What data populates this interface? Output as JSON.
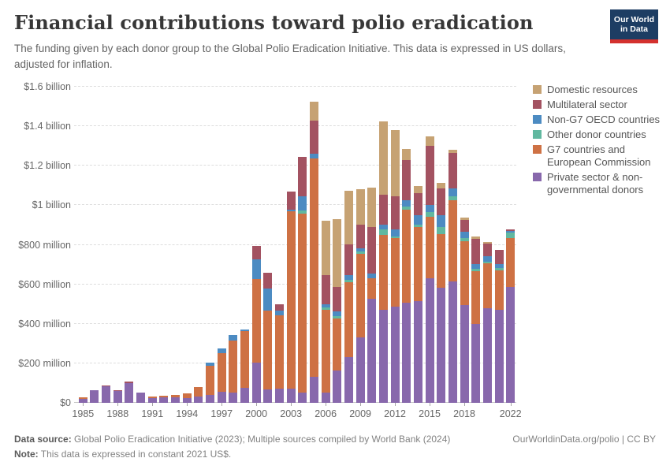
{
  "header": {
    "title": "Financial contributions toward polio eradication",
    "subtitle": "The funding given by each donor group to the Global Polio Eradication Initiative. This data is expressed in US dollars, adjusted for inflation.",
    "logo": {
      "line1": "Our World",
      "line2": "in Data"
    }
  },
  "chart_data": {
    "type": "bar",
    "stacked": true,
    "title": "Financial contributions toward polio eradication",
    "xlabel": "",
    "ylabel": "",
    "values_unit": "million US$ (constant 2021 US$)",
    "ylim": [
      0,
      1600
    ],
    "grid": "horizontal-dashed",
    "legend_position": "right",
    "categories": [
      1985,
      1986,
      1987,
      1988,
      1989,
      1990,
      1991,
      1992,
      1993,
      1994,
      1995,
      1996,
      1997,
      1998,
      1999,
      2000,
      2001,
      2002,
      2003,
      2004,
      2005,
      2006,
      2007,
      2008,
      2009,
      2010,
      2011,
      2012,
      2013,
      2014,
      2015,
      2016,
      2017,
      2018,
      2019,
      2020,
      2021,
      2022
    ],
    "series": [
      {
        "name": "Private sector & non-governmental donors",
        "color": "#8868AC",
        "values": [
          22,
          62,
          85,
          58,
          101,
          51,
          24,
          27,
          27,
          23,
          31,
          40,
          57,
          51,
          77,
          204,
          68,
          73,
          73,
          52,
          132,
          53,
          164,
          233,
          332,
          525,
          470,
          488,
          505,
          516,
          632,
          584,
          613,
          494,
          400,
          480,
          469,
          585
        ]
      },
      {
        "name": "G7 countries and European Commission",
        "color": "#CE7144",
        "values": [
          7,
          0,
          0,
          0,
          0,
          0,
          7,
          7,
          12,
          25,
          49,
          149,
          196,
          263,
          287,
          424,
          400,
          371,
          897,
          906,
          1105,
          418,
          263,
          377,
          422,
          105,
          380,
          346,
          474,
          372,
          310,
          271,
          411,
          324,
          266,
          225,
          200,
          250
        ]
      },
      {
        "name": "Other donor countries",
        "color": "#61B8A0",
        "values": [
          0,
          0,
          0,
          0,
          0,
          0,
          0,
          0,
          0,
          0,
          0,
          0,
          0,
          0,
          0,
          0,
          0,
          0,
          0,
          17,
          0,
          12,
          12,
          12,
          12,
          0,
          28,
          8,
          15,
          12,
          24,
          36,
          20,
          17,
          12,
          11,
          13,
          28
        ]
      },
      {
        "name": "Non-G7 OECD countries",
        "color": "#4C8BC2",
        "values": [
          0,
          0,
          0,
          0,
          0,
          0,
          0,
          0,
          0,
          0,
          0,
          15,
          22,
          28,
          9,
          99,
          112,
          24,
          9,
          70,
          24,
          16,
          24,
          24,
          16,
          23,
          24,
          36,
          30,
          48,
          35,
          60,
          40,
          31,
          24,
          27,
          20,
          8
        ]
      },
      {
        "name": "Multilateral sector",
        "color": "#A35261",
        "values": [
          0,
          3,
          3,
          5,
          5,
          2,
          0,
          0,
          0,
          0,
          0,
          0,
          0,
          0,
          0,
          66,
          80,
          32,
          90,
          200,
          166,
          147,
          124,
          156,
          120,
          238,
          151,
          167,
          204,
          113,
          301,
          133,
          183,
          59,
          127,
          63,
          73,
          8
        ]
      },
      {
        "name": "Domestic resources",
        "color": "#C6A273",
        "values": [
          0,
          0,
          0,
          0,
          0,
          0,
          0,
          0,
          0,
          0,
          0,
          0,
          0,
          0,
          0,
          0,
          0,
          0,
          0,
          0,
          97,
          276,
          344,
          270,
          179,
          199,
          371,
          335,
          56,
          36,
          48,
          31,
          16,
          13,
          13,
          10,
          0,
          0
        ]
      }
    ],
    "y_ticks": [
      {
        "value": 0,
        "label": "$0"
      },
      {
        "value": 200,
        "label": "$200 million"
      },
      {
        "value": 400,
        "label": "$400 million"
      },
      {
        "value": 600,
        "label": "$600 million"
      },
      {
        "value": 800,
        "label": "$800 million"
      },
      {
        "value": 1000,
        "label": "$1 billion"
      },
      {
        "value": 1200,
        "label": "$1.2 billion"
      },
      {
        "value": 1400,
        "label": "$1.4 billion"
      },
      {
        "value": 1600,
        "label": "$1.6 billion"
      }
    ],
    "x_ticks": [
      {
        "index": 0,
        "label": "1985"
      },
      {
        "index": 3,
        "label": "1988"
      },
      {
        "index": 6,
        "label": "1991"
      },
      {
        "index": 9,
        "label": "1994"
      },
      {
        "index": 12,
        "label": "1997"
      },
      {
        "index": 15,
        "label": "2000"
      },
      {
        "index": 18,
        "label": "2003"
      },
      {
        "index": 21,
        "label": "2006"
      },
      {
        "index": 24,
        "label": "2009"
      },
      {
        "index": 27,
        "label": "2012"
      },
      {
        "index": 30,
        "label": "2015"
      },
      {
        "index": 33,
        "label": "2018"
      },
      {
        "index": 37,
        "label": "2022"
      }
    ]
  },
  "legend": {
    "items": [
      {
        "label": "Domestic resources",
        "color": "#C6A273"
      },
      {
        "label": "Multilateral sector",
        "color": "#A35261"
      },
      {
        "label": "Non-G7 OECD countries",
        "color": "#4C8BC2"
      },
      {
        "label": "Other donor countries",
        "color": "#61B8A0"
      },
      {
        "label": "G7 countries and European Commission",
        "color": "#CE7144"
      },
      {
        "label": "Private sector & non-governmental donors",
        "color": "#8868AC"
      }
    ]
  },
  "footer": {
    "source_label": "Data source:",
    "source_text": " Global Polio Eradication Initiative (2023); Multiple sources compiled by World Bank (2024)",
    "link_text": "OurWorldinData.org/polio | CC BY",
    "note_label": "Note:",
    "note_text": " This data is expressed in constant 2021 US$."
  }
}
